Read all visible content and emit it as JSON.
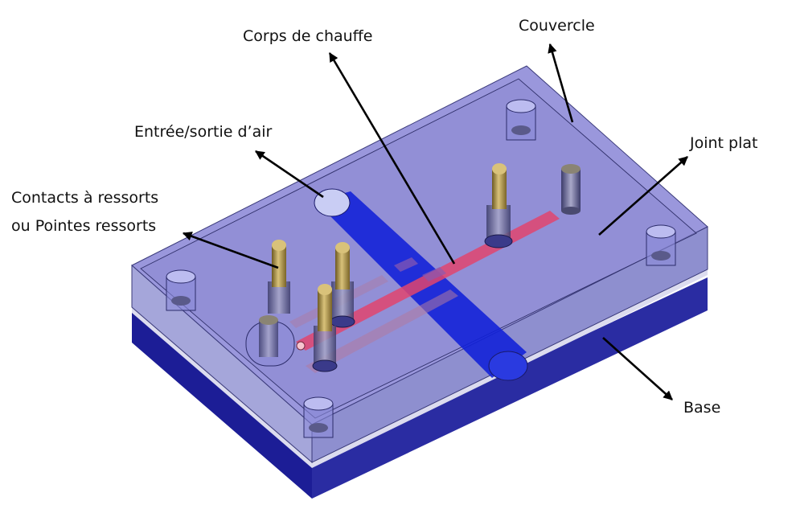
{
  "labels": {
    "heater": "Corps de chauffe",
    "cover": "Couvercle",
    "air": "Entrée/sortie d’air",
    "gasket": "Joint plat",
    "contacts_line1": "Contacts à ressorts",
    "contacts_line2": "ou Pointes ressorts",
    "base": "Base"
  },
  "colors": {
    "cover_top": "#9A97DC",
    "cover_front": "#A5A6DA",
    "base_front": "#1E1F9E",
    "base_side": "#2C2E9E",
    "channel": "#1020D8",
    "heater_strip": "#E0456E",
    "pin_gold": "#B59A45"
  }
}
